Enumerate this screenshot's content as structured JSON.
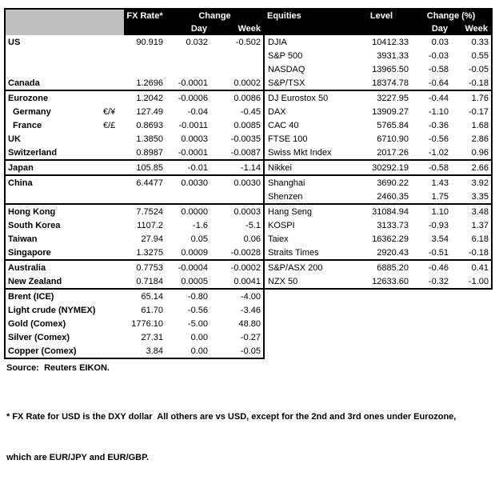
{
  "fx_table": {
    "headers": {
      "rate": "FX Rate*",
      "change": "Change",
      "day": "Day",
      "week": "Week"
    }
  },
  "equity_table": {
    "headers": {
      "name": "Equities",
      "level": "Level",
      "change_pct": "Change (%)",
      "day": "Day",
      "week": "Week"
    }
  },
  "rows": [
    {
      "section_end": false,
      "fx": {
        "label": "US",
        "indent": false,
        "pair": "",
        "rate": "90.919",
        "day": "0.032",
        "week": "-0.502"
      },
      "eq": {
        "name": "DJIA",
        "level": "10412.33",
        "day": "0.03",
        "week": "0.33"
      }
    },
    {
      "section_end": false,
      "fx": {
        "label": "",
        "indent": false,
        "pair": "",
        "rate": "",
        "day": "",
        "week": ""
      },
      "eq": {
        "name": "S&P 500",
        "level": "3931.33",
        "day": "-0.03",
        "week": "0.55"
      }
    },
    {
      "section_end": false,
      "fx": {
        "label": "",
        "indent": false,
        "pair": "",
        "rate": "",
        "day": "",
        "week": ""
      },
      "eq": {
        "name": "NASDAQ",
        "level": "13965.50",
        "day": "-0.58",
        "week": "-0.05"
      }
    },
    {
      "section_end": true,
      "fx": {
        "label": "Canada",
        "indent": false,
        "pair": "",
        "rate": "1.2696",
        "day": "-0.0001",
        "week": "0.0002"
      },
      "eq": {
        "name": "S&P/TSX",
        "level": "18374.78",
        "day": "-0.64",
        "week": "-0.18"
      }
    },
    {
      "section_end": false,
      "fx": {
        "label": "Eurozone",
        "indent": false,
        "pair": "",
        "rate": "1.2042",
        "day": "-0.0006",
        "week": "0.0086"
      },
      "eq": {
        "name": "DJ Eurostox 50",
        "level": "3227.95",
        "day": "-0.44",
        "week": "1.76"
      }
    },
    {
      "section_end": false,
      "fx": {
        "label": "Germany",
        "indent": true,
        "pair": "€/¥",
        "rate": "127.49",
        "day": "-0.04",
        "week": "-0.45"
      },
      "eq": {
        "name": "DAX",
        "level": "13909.27",
        "day": "-1.10",
        "week": "-0.17"
      }
    },
    {
      "section_end": false,
      "fx": {
        "label": "France",
        "indent": true,
        "pair": "€/£",
        "rate": "0.8693",
        "day": "-0.0011",
        "week": "0.0085"
      },
      "eq": {
        "name": "CAC 40",
        "level": "5765.84",
        "day": "-0.36",
        "week": "1.68"
      }
    },
    {
      "section_end": false,
      "fx": {
        "label": "UK",
        "indent": false,
        "pair": "",
        "rate": "1.3850",
        "day": "0.0003",
        "week": "-0.0035"
      },
      "eq": {
        "name": "FTSE 100",
        "level": "6710.90",
        "day": "-0.56",
        "week": "2.86"
      }
    },
    {
      "section_end": true,
      "fx": {
        "label": "Switzerland",
        "indent": false,
        "pair": "",
        "rate": "0.8987",
        "day": "-0.0001",
        "week": "-0.0087"
      },
      "eq": {
        "name": "Swiss Mkt Index",
        "level": "2017.26",
        "day": "-1.02",
        "week": "0.96"
      }
    },
    {
      "section_end": true,
      "fx": {
        "label": "Japan",
        "indent": false,
        "pair": "",
        "rate": "105.85",
        "day": "-0.01",
        "week": "-1.14"
      },
      "eq": {
        "name": "Nikkei",
        "level": "30292.19",
        "day": "-0.58",
        "week": "2.66"
      }
    },
    {
      "section_end": false,
      "fx": {
        "label": "China",
        "indent": false,
        "pair": "",
        "rate": "6.4477",
        "day": "0.0030",
        "week": "0.0030"
      },
      "eq": {
        "name": "Shanghai",
        "level": "3690.22",
        "day": "1.43",
        "week": "3.92"
      }
    },
    {
      "section_end": true,
      "fx": {
        "label": "",
        "indent": false,
        "pair": "",
        "rate": "",
        "day": "",
        "week": ""
      },
      "eq": {
        "name": "Shenzen",
        "level": "2460.35",
        "day": "1.75",
        "week": "3.35"
      }
    },
    {
      "section_end": false,
      "fx": {
        "label": "Hong Kong",
        "indent": false,
        "pair": "",
        "rate": "7.7524",
        "day": "0.0000",
        "week": "0.0003"
      },
      "eq": {
        "name": "Hang Seng",
        "level": "31084.94",
        "day": "1.10",
        "week": "3.48"
      }
    },
    {
      "section_end": false,
      "fx": {
        "label": "South Korea",
        "indent": false,
        "pair": "",
        "rate": "1107.2",
        "day": "-1.6",
        "week": "-5.1"
      },
      "eq": {
        "name": "KOSPI",
        "level": "3133.73",
        "day": "-0.93",
        "week": "1.37"
      }
    },
    {
      "section_end": false,
      "fx": {
        "label": "Taiwan",
        "indent": false,
        "pair": "",
        "rate": "27.94",
        "day": "0.05",
        "week": "0.06"
      },
      "eq": {
        "name": "Taiex",
        "level": "16362.29",
        "day": "3.54",
        "week": "6.18"
      }
    },
    {
      "section_end": true,
      "fx": {
        "label": "Singapore",
        "indent": false,
        "pair": "",
        "rate": "1.3275",
        "day": "0.0009",
        "week": "-0.0028"
      },
      "eq": {
        "name": "Straits Times",
        "level": "2920.43",
        "day": "-0.51",
        "week": "-0.18"
      }
    },
    {
      "section_end": false,
      "fx": {
        "label": "Australia",
        "indent": false,
        "pair": "",
        "rate": "0.7753",
        "day": "-0.0004",
        "week": "-0.0002"
      },
      "eq": {
        "name": "S&P/ASX  200",
        "level": "6885.20",
        "day": "-0.46",
        "week": "0.41"
      }
    },
    {
      "section_end": true,
      "fx": {
        "label": "New Zealand",
        "indent": false,
        "pair": "",
        "rate": "0.7184",
        "day": "0.0005",
        "week": "0.0041"
      },
      "eq": {
        "name": "NZX 50",
        "level": "12633.60",
        "day": "-0.32",
        "week": "-1.00"
      }
    },
    {
      "section_end": false,
      "fx": {
        "label": "Brent (ICE)",
        "indent": false,
        "pair": "",
        "rate": "65.14",
        "day": "-0.80",
        "week": "-4.00"
      },
      "eq": null
    },
    {
      "section_end": false,
      "fx": {
        "label": "Light crude (NYMEX)",
        "indent": false,
        "pair": "",
        "rate": "61.70",
        "day": "-0.56",
        "week": "-3.46"
      },
      "eq": null
    },
    {
      "section_end": false,
      "fx": {
        "label": "Gold (Comex)",
        "indent": false,
        "pair": "",
        "rate": "1776.10",
        "day": "-5.00",
        "week": "48.80"
      },
      "eq": null
    },
    {
      "section_end": false,
      "fx": {
        "label": "Silver (Comex)",
        "indent": false,
        "pair": "",
        "rate": "27.31",
        "day": "0.00",
        "week": "-0.27"
      },
      "eq": null
    },
    {
      "section_end": true,
      "fx": {
        "label": "Copper (Comex)",
        "indent": false,
        "pair": "",
        "rate": "3.84",
        "day": "0.00",
        "week": "-0.05"
      },
      "eq": null
    }
  ],
  "notes": {
    "source": "Source:  Reuters EIKON.",
    "footnote1": "* FX Rate for USD is the DXY dollar  All others are vs USD, except for the 2nd and 3rd ones under Eurozone,",
    "footnote2": "which are EUR/JPY and EUR/GBP."
  },
  "colors": {
    "header_bg": "#000000",
    "header_text": "#FFFFFF",
    "corner_bg": "#BFBFBF"
  }
}
